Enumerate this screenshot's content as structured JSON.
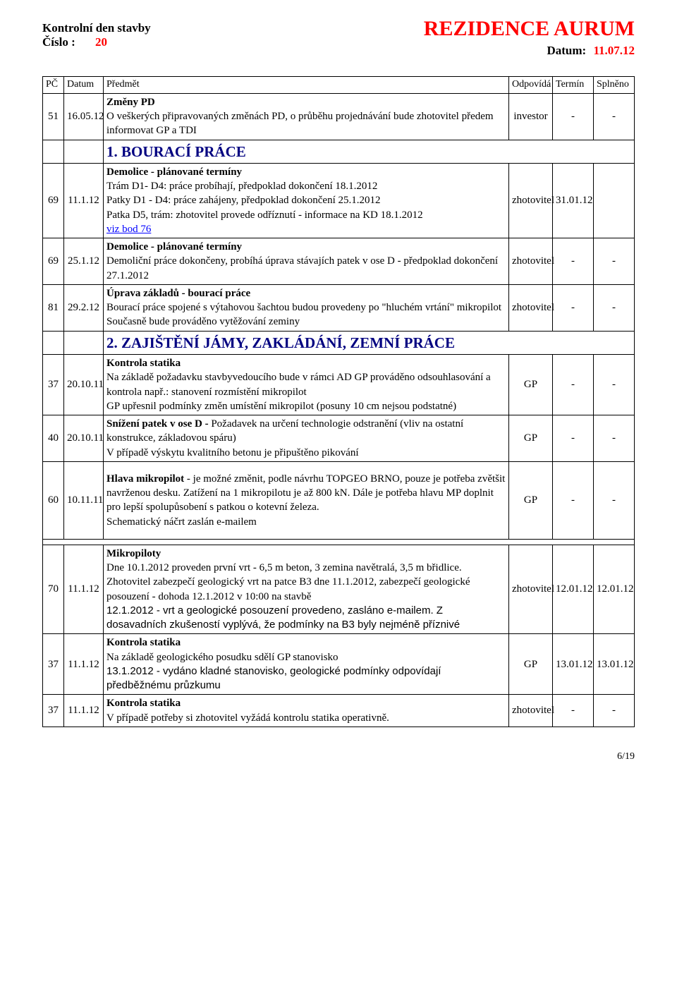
{
  "header": {
    "title_left_top": "Kontrolní den stavby",
    "title_left_bottom_label": "Číslo :",
    "title_left_bottom_value": "20",
    "title_right_top": "REZIDENCE AURUM",
    "title_right_bottom_label": "Datum:",
    "title_right_bottom_value": "11.07.12"
  },
  "columns": {
    "pc": "PČ",
    "datum": "Datum",
    "predmet": "Předmět",
    "odpovida": "Odpovídá",
    "termin": "Termín",
    "splneno": "Splněno"
  },
  "rows": [
    {
      "pc": "51",
      "datum": "16.05.12",
      "subject_title": "Změny PD",
      "subject_body": "O veškerých připravovaných změnách PD, o průběhu projednávání bude zhotovitel předem informovat GP a TDI",
      "odp": "investor",
      "term": "-",
      "spl": "-"
    },
    {
      "section": "1.     BOURACÍ PRÁCE",
      "color": "#000080"
    },
    {
      "pc": "69",
      "datum": "11.1.12",
      "subject_title": "Demolice - plánované termíny",
      "subject_body_lines": [
        "Trám D1- D4:  práce probíhají, předpoklad dokončení 18.1.2012",
        "Patky D1 - D4:  práce zahájeny,  předpoklad dokončení 25.1.2012",
        "Patka D5, trám: zhotovitel provede odříznutí - informace na KD 18.1.2012"
      ],
      "subject_link": "viz bod 76",
      "odp": "zhotovitel",
      "term": "31.01.12",
      "spl": ""
    },
    {
      "pc": "69",
      "datum": "25.1.12",
      "subject_title": "Demolice - plánované termíny",
      "subject_body": "Demoliční práce dokončeny, probíhá úprava stávajích patek v ose D - předpoklad dokončení 27.1.2012",
      "odp": "zhotovitel",
      "term": "-",
      "spl": "-"
    },
    {
      "pc": "81",
      "datum": "29.2.12",
      "subject_title": "Úprava základů - bourací práce",
      "subject_body_lines": [
        "Bourací práce spojené s výtahovou šachtou budou provedeny po \"hluchém vrtání\" mikropilot",
        "Současně bude prováděno vytěžování zeminy"
      ],
      "odp": "zhotovitel",
      "term": "-",
      "spl": "-"
    },
    {
      "section": "2.     ZAJIŠTĚNÍ JÁMY, ZAKLÁDÁNÍ, ZEMNÍ PRÁCE",
      "color": "#000080"
    },
    {
      "pc": "37",
      "datum": "20.10.11",
      "subject_title": "Kontrola statika",
      "subject_body_lines": [
        "Na základě požadavku stavbyvedoucího bude v rámci AD GP prováděno odsouhlasování a kontrola např.: stanovení rozmístění mikropilot",
        "GP upřesnil podmínky změn umístění mikropilot (posuny 10 cm nejsou podstatné)"
      ],
      "odp": "GP",
      "term": "-",
      "spl": "-"
    },
    {
      "pc": "40",
      "datum": "20.10.11",
      "subject_body_lines": [
        "<b>Snížení patek v ose D - </b> Požadavek na určení technologie odstranění (vliv na ostatní konstrukce, základovou spáru)",
        "V případě výskytu kvalitního betonu je připuštěno pikování"
      ],
      "odp": "GP",
      "term": "-",
      "spl": "-"
    },
    {
      "pc": "60",
      "datum": "10.11.11",
      "subject_body_lines": [
        "<b>Hlava mikropilot</b> - je  možné změnit, podle návrhu TOPGEO BRNO, pouze je potřeba zvětšit navrženou desku. Zatížení na 1 mikropilotu je až 800 kN. Dále je potřeba hlavu MP doplnit pro lepší spolupůsobení s patkou o kotevní železa.",
        "Schematický náčrt zaslán e-mailem"
      ],
      "extra_pad": true,
      "odp": "GP",
      "term": "-",
      "spl": "-"
    },
    {
      "gap": true
    },
    {
      "pc": "70",
      "datum": "11.1.12",
      "subject_title": "Mikropiloty",
      "subject_body_lines": [
        "Dne 10.1.2012 proveden první vrt - 6,5 m beton, 3 zemina navětralá,  3,5 m břidlice.",
        "Zhotovitel zabezpečí geologický vrt na patce B3 dne 11.1.2012, zabezpečí geologické posouzení - dohoda 12.1.2012 v 10:00 na stavbě"
      ],
      "subject_arial": "12.1.2012 - vrt a geologické posouzení provedeno, zasláno e-mailem. Z dosavadních zkušeností vyplývá, že podmínky na B3 byly nejméně příznivé",
      "odp": "zhotovitel",
      "term": "12.01.12",
      "spl": "12.01.12"
    },
    {
      "pc": "37",
      "datum": "11.1.12",
      "subject_title": "Kontrola statika",
      "subject_body": "Na základě geologického posudku sdělí GP stanovisko",
      "subject_arial": "13.1.2012 - vydáno kladné stanovisko, geologické podmínky odpovídají předběžnému průzkumu",
      "odp": "GP",
      "term": "13.01.12",
      "spl": "13.01.12"
    },
    {
      "pc": "37",
      "datum": "11.1.12",
      "subject_title": "Kontrola statika",
      "subject_body": "V případě potřeby si zhotovitel vyžádá kontrolu statika operativně.",
      "odp": "zhotovitel",
      "term": "-",
      "spl": "-"
    }
  ],
  "page_number": "6/19"
}
